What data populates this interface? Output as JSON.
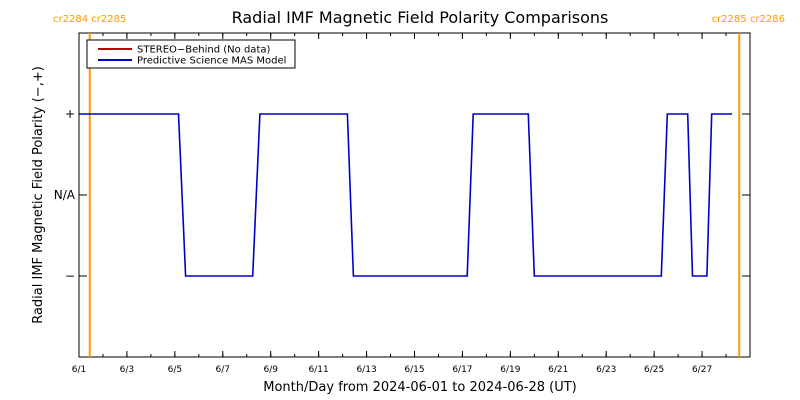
{
  "chart_data": {
    "type": "line",
    "title": "Radial IMF Magnetic Field Polarity Comparisons",
    "xlabel": "Month/Day from 2024-06-01 to 2024-06-28 (UT)",
    "ylabel": "Radial IMF Magnetic Field Polarity (−,+)",
    "x_range_days": [
      1,
      29
    ],
    "x_ticks": [
      {
        "day": 1,
        "label": "6/1"
      },
      {
        "day": 3,
        "label": "6/3"
      },
      {
        "day": 5,
        "label": "6/5"
      },
      {
        "day": 7,
        "label": "6/7"
      },
      {
        "day": 9,
        "label": "6/9"
      },
      {
        "day": 11,
        "label": "6/11"
      },
      {
        "day": 13,
        "label": "6/13"
      },
      {
        "day": 15,
        "label": "6/15"
      },
      {
        "day": 17,
        "label": "6/17"
      },
      {
        "day": 19,
        "label": "6/19"
      },
      {
        "day": 21,
        "label": "6/21"
      },
      {
        "day": 23,
        "label": "6/23"
      },
      {
        "day": 25,
        "label": "6/25"
      },
      {
        "day": 27,
        "label": "6/27"
      }
    ],
    "y_range": [
      -2,
      2
    ],
    "y_ticks": [
      {
        "value": 1,
        "label": "+"
      },
      {
        "value": 0,
        "label": "N/A"
      },
      {
        "value": -1,
        "label": "−"
      }
    ],
    "legend": {
      "placement": "top-left",
      "entries": [
        {
          "label": "STEREO−Behind (No data)",
          "color": "#c00000"
        },
        {
          "label": "Predictive Science MAS Model",
          "color": "#0000cc"
        }
      ]
    },
    "series": [
      {
        "name": "Predictive Science MAS Model",
        "color": "#0000cc",
        "points": [
          [
            1.0,
            1
          ],
          [
            5.15,
            1
          ],
          [
            5.45,
            -1
          ],
          [
            8.25,
            -1
          ],
          [
            8.55,
            1
          ],
          [
            12.2,
            1
          ],
          [
            12.45,
            -1
          ],
          [
            17.2,
            -1
          ],
          [
            17.45,
            1
          ],
          [
            19.75,
            1
          ],
          [
            20.0,
            -1
          ],
          [
            25.3,
            -1
          ],
          [
            25.55,
            1
          ],
          [
            26.4,
            1
          ],
          [
            26.6,
            -1
          ],
          [
            27.2,
            -1
          ],
          [
            27.4,
            1
          ],
          [
            28.25,
            1
          ]
        ]
      }
    ],
    "carrington_markers": [
      {
        "day": 1.45,
        "left_label": "cr2284",
        "right_label": "cr2285",
        "side": "left"
      },
      {
        "day": 28.55,
        "left_label": "cr2285",
        "right_label": "cr2286",
        "side": "right"
      }
    ],
    "marker_color": "#ff9900"
  }
}
